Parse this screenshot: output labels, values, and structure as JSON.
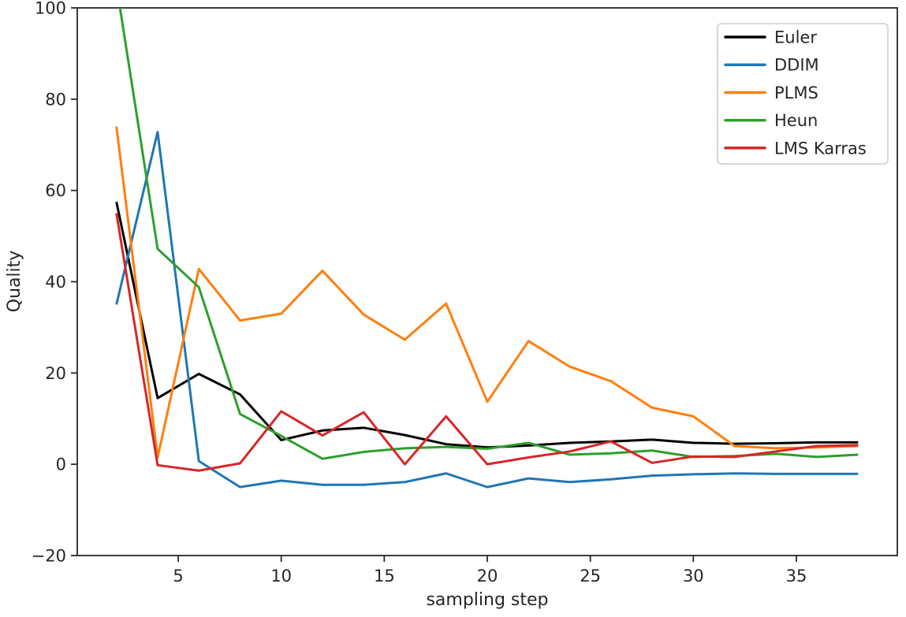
{
  "figure": {
    "background": "#ffffff",
    "axis_color": "#262626",
    "spine_color": "#262626"
  },
  "chart_data": {
    "type": "line",
    "title": "",
    "xlabel": "sampling step",
    "ylabel": "Quality",
    "xlim": [
      0.1,
      39.9
    ],
    "ylim": [
      -20,
      100
    ],
    "xticks": [
      5,
      10,
      15,
      20,
      25,
      30,
      35
    ],
    "yticks": [
      -20,
      0,
      20,
      40,
      60,
      80,
      100
    ],
    "grid": false,
    "legend": {
      "position": "upper right",
      "entries": [
        "Euler",
        "DDIM",
        "PLMS",
        "Heun",
        "LMS Karras"
      ]
    },
    "x": [
      2,
      4,
      6,
      8,
      10,
      12,
      14,
      16,
      18,
      20,
      22,
      24,
      26,
      28,
      30,
      32,
      34,
      36,
      38
    ],
    "series": [
      {
        "name": "Euler",
        "color": "#000000",
        "values": [
          57.5,
          14.5,
          19.8,
          15.3,
          5.3,
          7.4,
          8.0,
          6.4,
          4.4,
          3.7,
          4.1,
          4.7,
          5.0,
          5.4,
          4.7,
          4.5,
          4.6,
          4.8,
          4.8
        ]
      },
      {
        "name": "DDIM",
        "color": "#1f77b4",
        "values": [
          35.0,
          72.8,
          0.7,
          -5.0,
          -3.6,
          -4.5,
          -4.5,
          -3.9,
          -2.0,
          -5.0,
          -3.1,
          -3.9,
          -3.3,
          -2.5,
          -2.2,
          -2.0,
          -2.1,
          -2.1,
          -2.1
        ]
      },
      {
        "name": "PLMS",
        "color": "#ff7f0e",
        "values": [
          74.0,
          1.5,
          42.8,
          31.5,
          33.0,
          42.4,
          32.8,
          27.3,
          35.2,
          13.7,
          27.0,
          21.4,
          18.2,
          12.4,
          10.5,
          4.0,
          3.5,
          3.7,
          4.0
        ]
      },
      {
        "name": "Heun",
        "color": "#2ca02c",
        "values": [
          105.0,
          47.2,
          38.8,
          11.0,
          6.2,
          1.2,
          2.7,
          3.5,
          3.8,
          3.4,
          4.7,
          2.1,
          2.4,
          3.0,
          1.6,
          1.8,
          2.3,
          1.6,
          2.1
        ]
      },
      {
        "name": "LMS Karras",
        "color": "#d62728",
        "values": [
          55.0,
          -0.2,
          -1.4,
          0.2,
          11.6,
          6.3,
          11.4,
          0.0,
          10.5,
          0.0,
          1.5,
          2.8,
          5.0,
          0.3,
          1.7,
          1.6,
          2.8,
          4.0,
          4.2
        ]
      }
    ]
  }
}
